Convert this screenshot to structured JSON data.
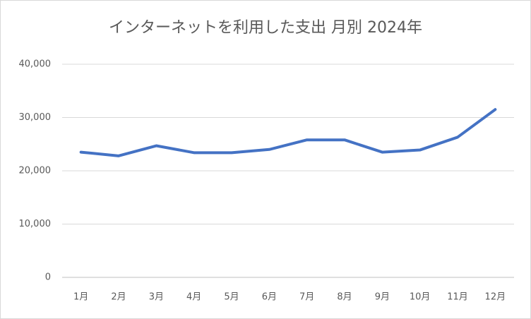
{
  "chart_data": {
    "type": "line",
    "title": "インターネットを利用した支出 月別 2024年",
    "categories": [
      "1月",
      "2月",
      "3月",
      "4月",
      "5月",
      "6月",
      "7月",
      "8月",
      "9月",
      "10月",
      "11月",
      "12月"
    ],
    "series": [
      {
        "color": "#4472c4",
        "values": [
          23500,
          22800,
          24700,
          23400,
          23400,
          24000,
          25800,
          25800,
          23500,
          23900,
          26300,
          31500
        ]
      }
    ],
    "ylim": [
      0,
      40000
    ],
    "yticks": [
      0,
      {
        "value": 10000,
        "label": "10,000"
      },
      {
        "value": 20000,
        "label": "20,000"
      },
      {
        "value": 30000,
        "label": "30,000"
      },
      {
        "value": 40000,
        "label": "40,000"
      }
    ],
    "grid": true
  }
}
